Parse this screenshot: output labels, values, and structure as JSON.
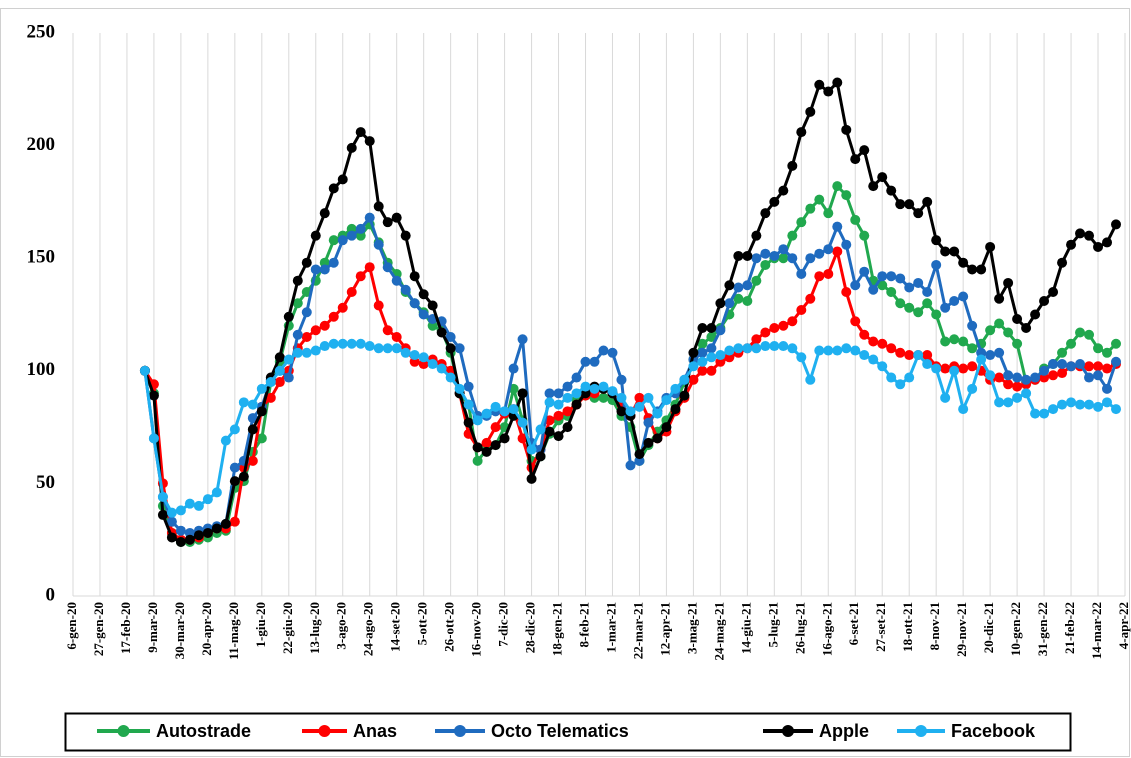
{
  "chart_data": {
    "type": "line",
    "categories": [
      "6-gen-20",
      null,
      null,
      "27-gen-20",
      null,
      null,
      "17-feb-20",
      null,
      null,
      "9-mar-20",
      null,
      null,
      "30-mar-20",
      null,
      null,
      "20-apr-20",
      null,
      null,
      "11-mag-20",
      null,
      null,
      "1-giu-20",
      null,
      null,
      "22-giu-20",
      null,
      null,
      "13-lug-20",
      null,
      null,
      "3-ago-20",
      null,
      null,
      "24-ago-20",
      null,
      null,
      "14-set-20",
      null,
      null,
      "5-ott-20",
      null,
      null,
      "26-ott-20",
      null,
      null,
      "16-nov-20",
      null,
      null,
      "7-dic-20",
      null,
      null,
      "28-dic-20",
      null,
      null,
      "18-gen-21",
      null,
      null,
      "8-feb-21",
      null,
      null,
      "1-mar-21",
      null,
      null,
      "22-mar-21",
      null,
      null,
      "12-apr-21",
      null,
      null,
      "3-mag-21",
      null,
      null,
      "24-mag-21",
      null,
      null,
      "14-giu-21",
      null,
      null,
      "5-lug-21",
      null,
      null,
      "26-lug-21",
      null,
      null,
      "16-ago-21",
      null,
      null,
      "6-set-21",
      null,
      null,
      "27-set-21",
      null,
      null,
      "18-ott-21",
      null,
      null,
      "8-nov-21",
      null,
      null,
      "29-nov-21",
      null,
      null,
      "20-dic-21",
      null,
      null,
      "10-gen-22",
      null,
      null,
      "31-gen-22",
      null,
      null,
      "21-feb-22",
      null,
      null,
      "14-mar-22",
      null,
      null,
      "4-apr-22"
    ],
    "series": [
      {
        "name": "Autostrade",
        "color": "#21a84e",
        "values": [
          null,
          null,
          null,
          null,
          null,
          null,
          null,
          null,
          100,
          90,
          40,
          28,
          24,
          24,
          25,
          26,
          28,
          29,
          48,
          51,
          64,
          70,
          95,
          104,
          120,
          130,
          135,
          140,
          148,
          158,
          160,
          163,
          160,
          165,
          157,
          148,
          143,
          135,
          130,
          126,
          120,
          118,
          108,
          90,
          85,
          60,
          65,
          67,
          75,
          92,
          78,
          60,
          62,
          72,
          78,
          80,
          87,
          89,
          88,
          88,
          87,
          80,
          75,
          60,
          67,
          73,
          78,
          85,
          95,
          105,
          112,
          115,
          119,
          125,
          132,
          131,
          140,
          147,
          150,
          150,
          160,
          166,
          172,
          176,
          170,
          182,
          178,
          167,
          160,
          140,
          138,
          135,
          130,
          128,
          126,
          130,
          125,
          113,
          114,
          113,
          110,
          112,
          118,
          121,
          117,
          112,
          95,
          96,
          101,
          103,
          108,
          112,
          117,
          116,
          110,
          108,
          112,
          null
        ]
      },
      {
        "name": "Anas",
        "color": "#ff0000",
        "values": [
          null,
          null,
          null,
          null,
          null,
          null,
          null,
          null,
          100,
          94,
          50,
          28,
          25,
          25,
          26,
          28,
          30,
          30,
          33,
          57,
          60,
          84,
          88,
          95,
          100,
          110,
          115,
          118,
          120,
          124,
          128,
          135,
          142,
          146,
          129,
          118,
          115,
          110,
          104,
          103,
          105,
          103,
          100,
          90,
          72,
          66,
          68,
          75,
          81,
          83,
          70,
          57,
          65,
          78,
          80,
          82,
          85,
          89,
          90,
          92,
          90,
          85,
          80,
          88,
          79,
          70,
          73,
          82,
          88,
          96,
          100,
          100,
          104,
          106,
          108,
          110,
          114,
          117,
          119,
          120,
          122,
          127,
          132,
          142,
          143,
          153,
          135,
          122,
          116,
          113,
          112,
          110,
          108,
          107,
          107,
          107,
          102,
          101,
          102,
          101,
          102,
          100,
          96,
          97,
          94,
          93,
          94,
          96,
          97,
          98,
          99,
          102,
          102,
          102,
          102,
          101,
          103,
          null
        ]
      },
      {
        "name": "Octo Telematics",
        "color": "#1f6bbf",
        "values": [
          null,
          null,
          null,
          null,
          null,
          null,
          null,
          null,
          100,
          70,
          44,
          33,
          29,
          28,
          29,
          30,
          31,
          32,
          57,
          60,
          79,
          84,
          96,
          100,
          97,
          116,
          126,
          145,
          145,
          148,
          158,
          160,
          163,
          168,
          156,
          146,
          140,
          136,
          130,
          125,
          123,
          122,
          115,
          110,
          93,
          80,
          80,
          82,
          82,
          101,
          114,
          68,
          65,
          90,
          90,
          93,
          97,
          104,
          104,
          109,
          108,
          96,
          58,
          60,
          77,
          82,
          88,
          90,
          96,
          105,
          108,
          110,
          118,
          130,
          137,
          138,
          150,
          152,
          151,
          154,
          150,
          143,
          150,
          152,
          154,
          164,
          156,
          138,
          144,
          136,
          142,
          142,
          141,
          137,
          139,
          135,
          147,
          128,
          131,
          133,
          120,
          108,
          107,
          108,
          98,
          97,
          96,
          97,
          100,
          103,
          103,
          102,
          103,
          97,
          98,
          92,
          104,
          null
        ]
      },
      {
        "name": "Apple",
        "color": "#000000",
        "values": [
          null,
          null,
          null,
          null,
          null,
          null,
          null,
          null,
          100,
          89,
          36,
          26,
          24,
          25,
          27,
          28,
          30,
          32,
          51,
          53,
          74,
          82,
          97,
          106,
          124,
          140,
          148,
          160,
          170,
          181,
          185,
          199,
          206,
          202,
          173,
          166,
          168,
          160,
          142,
          134,
          129,
          117,
          110,
          90,
          77,
          66,
          64,
          67,
          70,
          80,
          90,
          52,
          62,
          73,
          71,
          75,
          85,
          90,
          93,
          92,
          90,
          82,
          80,
          63,
          68,
          70,
          75,
          83,
          89,
          108,
          119,
          119,
          130,
          138,
          151,
          151,
          160,
          170,
          175,
          180,
          191,
          206,
          215,
          227,
          224,
          228,
          207,
          194,
          198,
          182,
          186,
          180,
          174,
          174,
          170,
          175,
          158,
          153,
          153,
          148,
          145,
          145,
          155,
          132,
          139,
          123,
          119,
          125,
          131,
          135,
          148,
          156,
          161,
          160,
          155,
          157,
          165,
          null
        ]
      },
      {
        "name": "Facebook",
        "color": "#1fb0f0",
        "values": [
          null,
          null,
          null,
          null,
          null,
          null,
          null,
          null,
          100,
          70,
          44,
          37,
          38,
          41,
          40,
          43,
          46,
          69,
          74,
          86,
          85,
          92,
          95,
          100,
          105,
          108,
          108,
          109,
          111,
          112,
          112,
          112,
          112,
          111,
          110,
          110,
          110,
          108,
          107,
          106,
          103,
          101,
          97,
          92,
          85,
          78,
          81,
          84,
          82,
          83,
          77,
          65,
          74,
          86,
          85,
          88,
          90,
          93,
          92,
          93,
          91,
          88,
          82,
          84,
          88,
          81,
          87,
          92,
          96,
          102,
          104,
          106,
          107,
          109,
          110,
          110,
          110,
          111,
          111,
          111,
          110,
          106,
          96,
          109,
          109,
          109,
          110,
          109,
          107,
          105,
          102,
          97,
          94,
          97,
          107,
          103,
          101,
          88,
          100,
          83,
          92,
          105,
          98,
          86,
          86,
          88,
          90,
          81,
          81,
          83,
          85,
          86,
          85,
          85,
          84,
          86,
          83,
          null
        ]
      }
    ],
    "ylim": [
      0,
      250
    ],
    "yticks": [
      0,
      50,
      100,
      150,
      200,
      250
    ],
    "grid": "x",
    "legend": "bottom"
  }
}
